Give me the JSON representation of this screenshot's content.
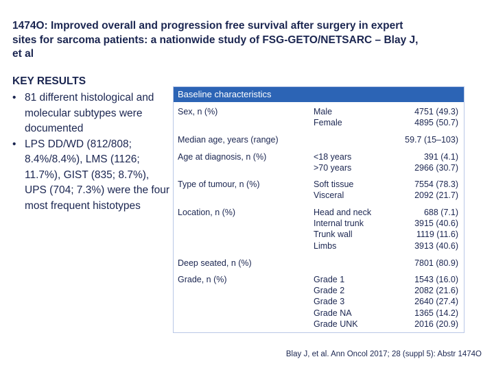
{
  "title": "1474O: Improved overall and progression free survival after surgery in expert sites for sarcoma patients: a nationwide study of FSG-GETO/NETSARC – Blay J, et al",
  "key_results": {
    "heading": "KEY RESULTS",
    "bullet_symbol": "•",
    "bullets": [
      "81 different histological and molecular subtypes were documented",
      "LPS DD/WD (812/808; 8.4%/8.4%), LMS (1126; 11.7%), GIST (835; 8.7%), UPS (704; 7.3%) were the four most frequent histotypes"
    ]
  },
  "table": {
    "header": "Baseline characteristics",
    "rows": [
      {
        "label": "Sex, n (%)",
        "categories": [
          "Male",
          "Female"
        ],
        "values": [
          "4751 (49.3)",
          "4895 (50.7)"
        ]
      },
      {
        "label": "Median age, years (range)",
        "categories": [],
        "values": [
          "59.7 (15–103)"
        ]
      },
      {
        "label": "Age at diagnosis, n (%)",
        "categories": [
          "<18 years",
          ">70 years"
        ],
        "values": [
          "391 (4.1)",
          "2966 (30.7)"
        ]
      },
      {
        "label": "Type of tumour, n (%)",
        "categories": [
          "Soft tissue",
          "Visceral"
        ],
        "values": [
          "7554 (78.3)",
          "2092 (21.7)"
        ]
      },
      {
        "label": "Location, n (%)",
        "categories": [
          "Head and neck",
          "Internal trunk",
          "Trunk wall",
          "Limbs"
        ],
        "values": [
          "688 (7.1)",
          "3915 (40.6)",
          "1119 (11.6)",
          "3913 (40.6)"
        ]
      },
      {
        "label": "Deep seated, n (%)",
        "categories": [],
        "values": [
          "7801 (80.9)"
        ]
      },
      {
        "label": "Grade, n (%)",
        "categories": [
          "Grade 1",
          "Grade 2",
          "Grade 3",
          "Grade NA",
          "Grade UNK"
        ],
        "values": [
          "1543 (16.0)",
          "2082 (21.6)",
          "2640 (27.4)",
          "1365 (14.2)",
          "2016 (20.9)"
        ]
      }
    ]
  },
  "citation": "Blay J, et al. Ann Oncol 2017; 28 (suppl 5): Abstr 1474O"
}
